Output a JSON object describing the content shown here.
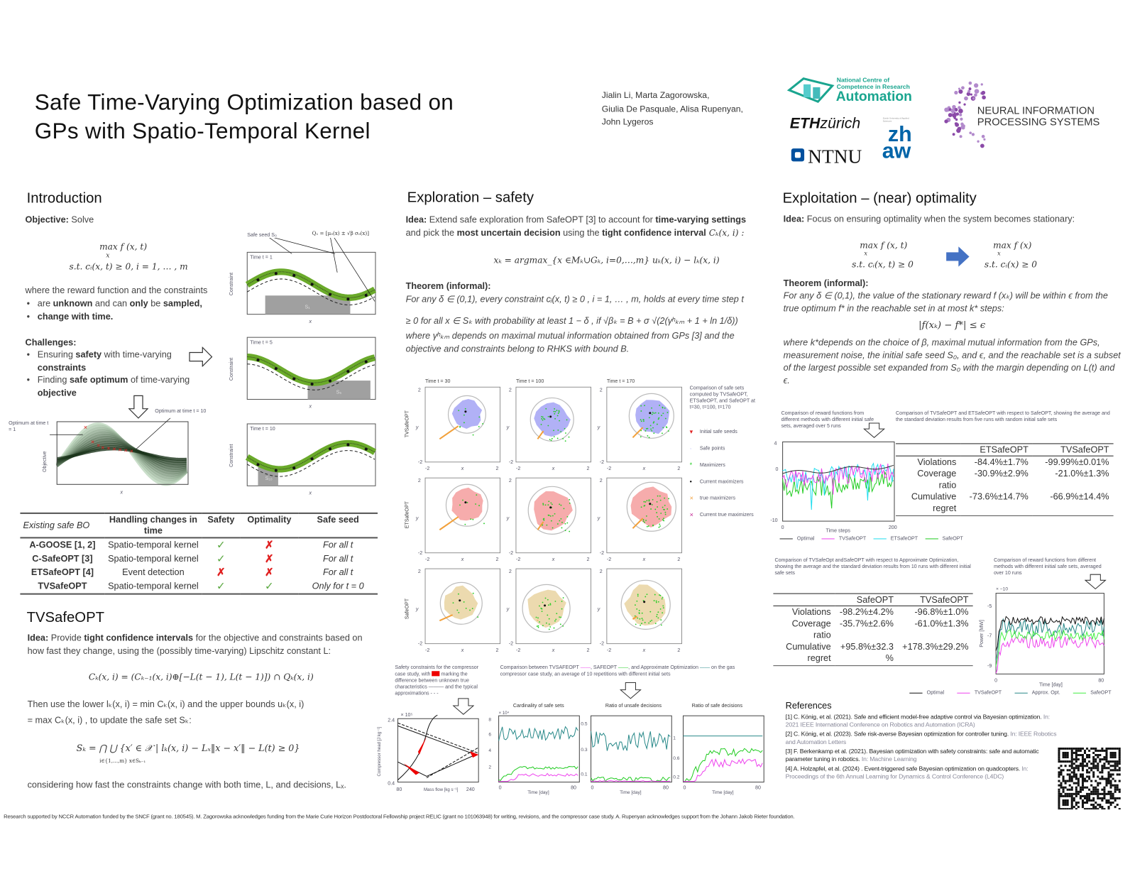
{
  "title": {
    "line1": "Safe Time-Varying Optimization based on",
    "line2": "GPs with Spatio-Temporal Kernel"
  },
  "authors": [
    "Jialin Li, Marta Zagorowska,",
    "Giulia De Pasquale, Alisa Rupenyan,",
    "John Lygeros"
  ],
  "logos": {
    "nccr": [
      "National Centre of",
      "Competence in Research",
      "Automation"
    ],
    "eth": [
      "ETH",
      "zürich"
    ],
    "ntnu": "NTNU",
    "zhaw": [
      "zh",
      "aw"
    ],
    "zhaw_small": "Zurich University of Applied Sciences",
    "neurips": [
      "NEURAL INFORMATION",
      "PROCESSING SYSTEMS"
    ]
  },
  "intro": {
    "heading": "Introduction",
    "objective_label": "Objective:",
    "objective_text": " Solve",
    "formula1": "max f (x, t)",
    "formula1_sub": "x",
    "formula2": "s.t.  cᵢ(x, t) ≥ 0, i = 1, … , m",
    "where": "where the reward function and the constraints",
    "b1": [
      "are ",
      "unknown",
      " and can ",
      "only",
      " be ",
      "sampled,"
    ],
    "b2": "change with time.",
    "challenges": "Challenges:",
    "c1": [
      "Ensuring ",
      "safety",
      " with time-varying ",
      "constraints"
    ],
    "c2": [
      "Finding ",
      "safe optimum",
      " of time-varying ",
      "objective"
    ],
    "fig": {
      "safe_seed": "Safe seed S₀",
      "q_label": "Q₁ = [μ₀(x) ± √β σ₀(x)]",
      "t1": "Time t = 1",
      "t5": "Time t = 5",
      "t10": "Time t = 10",
      "s1": "S₁",
      "s5": "S₅",
      "s10": "S₁₀",
      "ylabel": "Constraint",
      "xlabel": "x",
      "obj_ylabel": "Objective",
      "opt1": "Optimum at time t = 1",
      "opt10": "Optimum at time t = 10"
    }
  },
  "table1": {
    "headers": [
      "Existing safe BO",
      "Handling changes in time",
      "Safety",
      "Optimality",
      "Safe seed"
    ],
    "rows": [
      {
        "name": "A-GOOSE [1, 2]",
        "handling": "Spatio-temporal kernel",
        "safety": "check",
        "optimality": "cross",
        "seed": "For all t"
      },
      {
        "name": "C-SafeOPT [3]",
        "handling": "Spatio-temporal kernel",
        "safety": "check",
        "optimality": "cross",
        "seed": "For all t"
      },
      {
        "name": "ETSafeOPT [4]",
        "handling": "Event detection",
        "safety": "cross",
        "optimality": "cross",
        "seed": "For all t"
      },
      {
        "name": "TVSafeOPT",
        "handling": "Spatio-temporal kernel",
        "safety": "check",
        "optimality": "check",
        "seed": "Only for  t = 0"
      }
    ]
  },
  "tvsafeopt": {
    "heading": "TVSafeOPT",
    "idea_label": "Idea:",
    "idea": [
      " Provide ",
      "tight confidence intervals",
      " for the objective and constraints based on how fast they change, using the (possibly time-varying) Lipschitz constant L:"
    ],
    "eq1": "Cₖ(x, i) = (Cₖ₋₁(x, i)⊕[−L(t − 1), L(t − 1)]) ∩ Qₖ(x, i)",
    "then1": "Then  use the lower  lₖ(x, i)  = min Cₖ(x, i)  and the upper  bounds uₖ(x, i)",
    "then2": "= max Cₖ(x, i) , to update the safe set Sₖ:",
    "eq2": "Sₖ =  ⋂  ⋃  {x′ ∈ 𝒳 | lₖ(x, i) − Lₓ‖x − x′‖ − L(t) ≥ 0}",
    "eq2_sub": "i∈{1,…,m}  x∈Sₖ₋₁",
    "considering": "considering how fast the constraints change with both time, L, and decisions, Lₓ."
  },
  "exploration": {
    "heading": "Exploration – safety",
    "idea_label": "Idea:",
    "idea": [
      " Extend safe exploration from SafeOPT [3] to account for ",
      "time-varying settings",
      " and pick the ",
      "most uncertain decision",
      " using the ",
      "tight confidence interval",
      " Cₖ(x, i) :"
    ],
    "eq": "xₖ = argmax_{x ∈Mₖ∪Gₖ, i=0,…,m} uₖ(x, i) − lₖ(x, i)",
    "theorem_label": "Theorem (informal):",
    "theorem": [
      "For any δ ∈ (0,1), every constraint  cᵢ(x, t) ≥  0 , i = 1, … , m, holds at every time step t",
      "≥  0 for all x ∈ Sₖ with probability at least 1 − δ , if √βₖ = B + σ √(2(γʰₖₘ + 1 + ln 1/δ))",
      "where γʰₖₘ depends on maximal mutual information obtained from GPs [3] and the",
      "objective and constraints belong to RHKS with bound B."
    ],
    "grid": {
      "times": [
        "Time t = 30",
        "Time t = 100",
        "Time t = 170"
      ],
      "rows": [
        "TVSafeOPT",
        "ETSafeOPT",
        "SafeOPT"
      ],
      "xlabel": "x",
      "ylabel": "y",
      "ticks": [
        "-2",
        "2"
      ],
      "colors": [
        "#a9a9f5",
        "#f5a3a3",
        "#ead6a6"
      ]
    },
    "legend": {
      "caption": "Comparison of safe sets computed by TVSafeOPT, ETSafeOPT, and SafeOPT  at t=30, t=100, t=170",
      "items": [
        {
          "label": "Initial safe seeds",
          "color": "#e02020",
          "glyph": "▾"
        },
        {
          "label": "Safe points",
          "color": "#a9a9f5",
          "glyph": "·"
        },
        {
          "label": "Maximizers",
          "color": "#22cc22",
          "glyph": "*"
        },
        {
          "label": "Current maximizers",
          "color": "#111",
          "glyph": "•"
        },
        {
          "label": "true maximizers",
          "color": "#f2a03a",
          "glyph": "×"
        },
        {
          "label": "Current true maximizers",
          "color": "#c02090",
          "glyph": "×"
        }
      ]
    },
    "compressor": {
      "caption": [
        "Safety constraints for the compressor case study, with ",
        " marking the difference between unknown true characteristics ——— and the typical approximations - - -"
      ],
      "y_exp": "× 10⁵",
      "y_top": "2.4",
      "y_bot": "0.4",
      "x_left": "80",
      "x_right": "240",
      "xlabel": "Mass flow [kg s⁻¹]",
      "ylabel": "Compressor head [J kg⁻¹]"
    },
    "comparison_caption": [
      "Comparison between TVSAFEOPT ",
      "——",
      ", SAFEOPT ",
      "——",
      ", and Approximate Optimization ",
      "——",
      " on the gas compressor case study, an average of 10 repetitions with different initial sets"
    ],
    "charts": [
      {
        "title": "Cardinality of safe sets",
        "exp": "× 10⁴",
        "yticks": [
          "8",
          "6",
          "4",
          "2"
        ],
        "x0": "0",
        "x1": "80",
        "xlabel": "Time [day]"
      },
      {
        "title": "Ratio of unsafe decisions",
        "exp": "",
        "yticks": [
          "0.5",
          "0.3",
          "0.1"
        ],
        "x0": "0",
        "x1": "80",
        "xlabel": "Time [day]"
      },
      {
        "title": "Ratio of safe decisions",
        "exp": "",
        "yticks": [
          "1",
          "0.6",
          "0.2"
        ],
        "x0": "0",
        "x1": "80",
        "xlabel": "Time [day]"
      }
    ]
  },
  "exploitation": {
    "heading": "Exploitation – (near) optimality",
    "idea_label": "Idea:",
    "idea": " Focus on ensuring optimality when the system becomes stationary:",
    "f1a": "max f (x, t)",
    "f1b": "s.t.  cᵢ(x, t) ≥ 0",
    "f2a": "max f (x)",
    "f2b": "s.t.  cᵢ(x) ≥ 0",
    "sub": "x",
    "theorem_label": "Theorem (informal):",
    "theorem": "For any δ ∈ (0,1), the value of the stationary reward  f (xₖ) will be within ϵ from the true optimum f* in the reachable set in at most k* steps:",
    "eq": "|f(xₖ) − f*| ≤ ϵ",
    "where": "where  k*depends on the choice of β, maximal mutual information from the GPs, measurement noise, the initial safe seed S₀, and ϵ, and the reachable set is a subset of the largest possible set expanded from S₀ with the margin depending on L(t) and ϵ.",
    "cap1": "Comparison of reward functions  from different  methods  with different  initial safe sets,  averaged  over 5 runs",
    "cap2": "Comparison of TVSafeOPT and ETSafeOPT with respect to SafeOPT, showing the average and the standard deviation results from five runs with random initial safe sets",
    "chart1": {
      "yticks": [
        "4",
        "0",
        "-10"
      ],
      "x0": "0",
      "x1": "200",
      "xlabel": "Time steps",
      "legend": [
        {
          "label": "Optimal",
          "color": "#333"
        },
        {
          "label": "TVSafeOPT",
          "color": "#ee44ee"
        },
        {
          "label": "ETSafeOPT",
          "color": "#22ddee"
        },
        {
          "label": "SafeOPT",
          "color": "#22cc22"
        }
      ]
    },
    "table2": {
      "headers": [
        "",
        "ETSafeOPT",
        "TVSafeOPT"
      ],
      "rows": [
        [
          "Violations",
          "-84.4%±1.7%",
          "-99.99%±0.01%"
        ],
        [
          "Coverage ratio",
          "-30.9%±2.9%",
          "-21.0%±1.3%"
        ],
        [
          "Cumulative regret",
          "-73.6%±14.7%",
          "-66.9%±14.4%"
        ]
      ]
    },
    "cap3": "Comparison of TVSafeOpt  andSafeOPT  with respect to Approximate Optimization, showing the average and the standard deviation results from 10 runs with different initial safe sets",
    "cap4": "Comparison of reward functions  from different  methods  with different  initial safe sets, averaged  over 10 runs",
    "table3": {
      "headers": [
        "",
        "SafeOPT",
        "TVSafeOPT"
      ],
      "rows": [
        [
          "Violations",
          "-98.2%±4.2%",
          "-96.8%±1.0%"
        ],
        [
          "Coverage ratio",
          "-35.7%±2.6%",
          "-61.0%±1.3%"
        ],
        [
          "Cumulative regret",
          "+95.8%±32.3 %",
          "+178.3%±29.2%"
        ]
      ]
    },
    "chart2": {
      "exp": "× −10",
      "yticks": [
        "-5",
        "-7",
        "-9"
      ],
      "x0": "0",
      "x1": "80",
      "xlabel": "Time [day]",
      "ylabel": "Power [MW]",
      "legend": [
        {
          "label": "Optimal",
          "color": "#111"
        },
        {
          "label": "TVSafeOPT",
          "color": "#ee44ee"
        },
        {
          "label": "Approx. Opt.",
          "color": "#2a8a8a"
        },
        {
          "label": "SafeOPT",
          "color": "#44ee44"
        }
      ]
    }
  },
  "references": {
    "heading": "References",
    "items": [
      {
        "main": "[1] C. König, et al. (2021). Safe and efficient model-free adaptive control via Bayesian optimization.",
        "venue": "In: 2021 IEEE International Conference on Robotics and Automation (ICRA)"
      },
      {
        "main": "[2] C. König, et al. (2023). Safe risk-averse Bayesian optimization for controller tuning.",
        "venue": "In: IEEE Robotics and Automation Letters"
      },
      {
        "main": "[3] F. Berkenkamp et al. (2021). Bayesian optimization with safety constraints: safe and automatic parameter tuning in robotics.",
        "venue": "In: Machine Learning"
      },
      {
        "main": "[4] A. Holzapfel, et al. (2024) . Event-triggered safe Bayesian optimization on quadcopters.",
        "venue": "In: Proceedings of the 6th Annual Learning for Dynamics & Control Conference (L4DC)"
      }
    ]
  },
  "footer": "Research supported by NCCR Automation funded by the SNCF (grant no. 180545). M. Zagorowska acknowledges funding from the Marie Curie Horizon Postdoctoral Fellowship project RELIC (grant no 101063948) for writing, revisions, and the compressor case study. A. Rupenyan acknowledges support from the Johann Jakob Rieter foundation."
}
